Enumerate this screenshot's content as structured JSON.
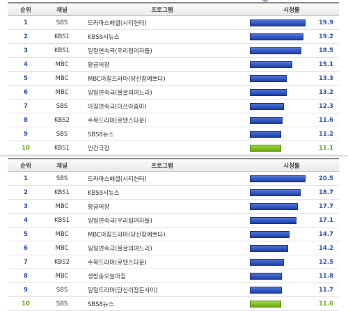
{
  "headers": {
    "rank": "순위",
    "channel": "채널",
    "program": "프로그램",
    "rating": "시청률"
  },
  "table1": [
    {
      "rank": "1",
      "channel": "SBS",
      "program": "드라마스페셜(시티헌터)",
      "rating": "19.9"
    },
    {
      "rank": "2",
      "channel": "KBS1",
      "program": "KBS9시뉴스",
      "rating": "19.2"
    },
    {
      "rank": "3",
      "channel": "KBS1",
      "program": "일일연속극(우리집여자들)",
      "rating": "18.5"
    },
    {
      "rank": "4",
      "channel": "MBC",
      "program": "황금어장",
      "rating": "15.1"
    },
    {
      "rank": "5",
      "channel": "MBC",
      "program": "MBC아침드라마(당신참예쁘다)",
      "rating": "13.3"
    },
    {
      "rank": "6",
      "channel": "MBC",
      "program": "일일연속극(불굴의며느리)",
      "rating": "13.2"
    },
    {
      "rank": "7",
      "channel": "SBS",
      "program": "아침연속극(미쓰아줌마)",
      "rating": "12.3"
    },
    {
      "rank": "8",
      "channel": "KBS2",
      "program": "수목드라마(로맨스타운)",
      "rating": "11.6"
    },
    {
      "rank": "9",
      "channel": "SBS",
      "program": "SBS8뉴스",
      "rating": "11.2"
    },
    {
      "rank": "10",
      "channel": "KBS1",
      "program": "인간극장",
      "rating": "11.1"
    }
  ],
  "table2": [
    {
      "rank": "1",
      "channel": "SBS",
      "program": "드라마스페셜(시티헌터)",
      "rating": "20.5"
    },
    {
      "rank": "2",
      "channel": "KBS1",
      "program": "KBS9시뉴스",
      "rating": "18.7"
    },
    {
      "rank": "3",
      "channel": "MBC",
      "program": "황금어장",
      "rating": "17.7"
    },
    {
      "rank": "4",
      "channel": "KBS1",
      "program": "일일연속극(우리집여자들)",
      "rating": "17.1"
    },
    {
      "rank": "5",
      "channel": "MBC",
      "program": "MBC아침드라마(당신참예쁘다)",
      "rating": "14.7"
    },
    {
      "rank": "6",
      "channel": "MBC",
      "program": "일일연속극(불굴의며느리)",
      "rating": "14.2"
    },
    {
      "rank": "7",
      "channel": "KBS2",
      "program": "수목드라마(로맨스타운)",
      "rating": "12.5"
    },
    {
      "rank": "8",
      "channel": "MBC",
      "program": "생방송오늘아침",
      "rating": "11.8"
    },
    {
      "rank": "9",
      "channel": "SBS",
      "program": "일일드라마(당신이잠든사이)",
      "rating": "11.7"
    },
    {
      "rank": "10",
      "channel": "SBS",
      "program": "SBS8뉴스",
      "rating": "11.6"
    }
  ],
  "colors": {
    "bar": "#2a4fc0",
    "bar_last": "#7cbf24",
    "rank_text": "#2a50b0",
    "rank_last": "#6aa416"
  }
}
